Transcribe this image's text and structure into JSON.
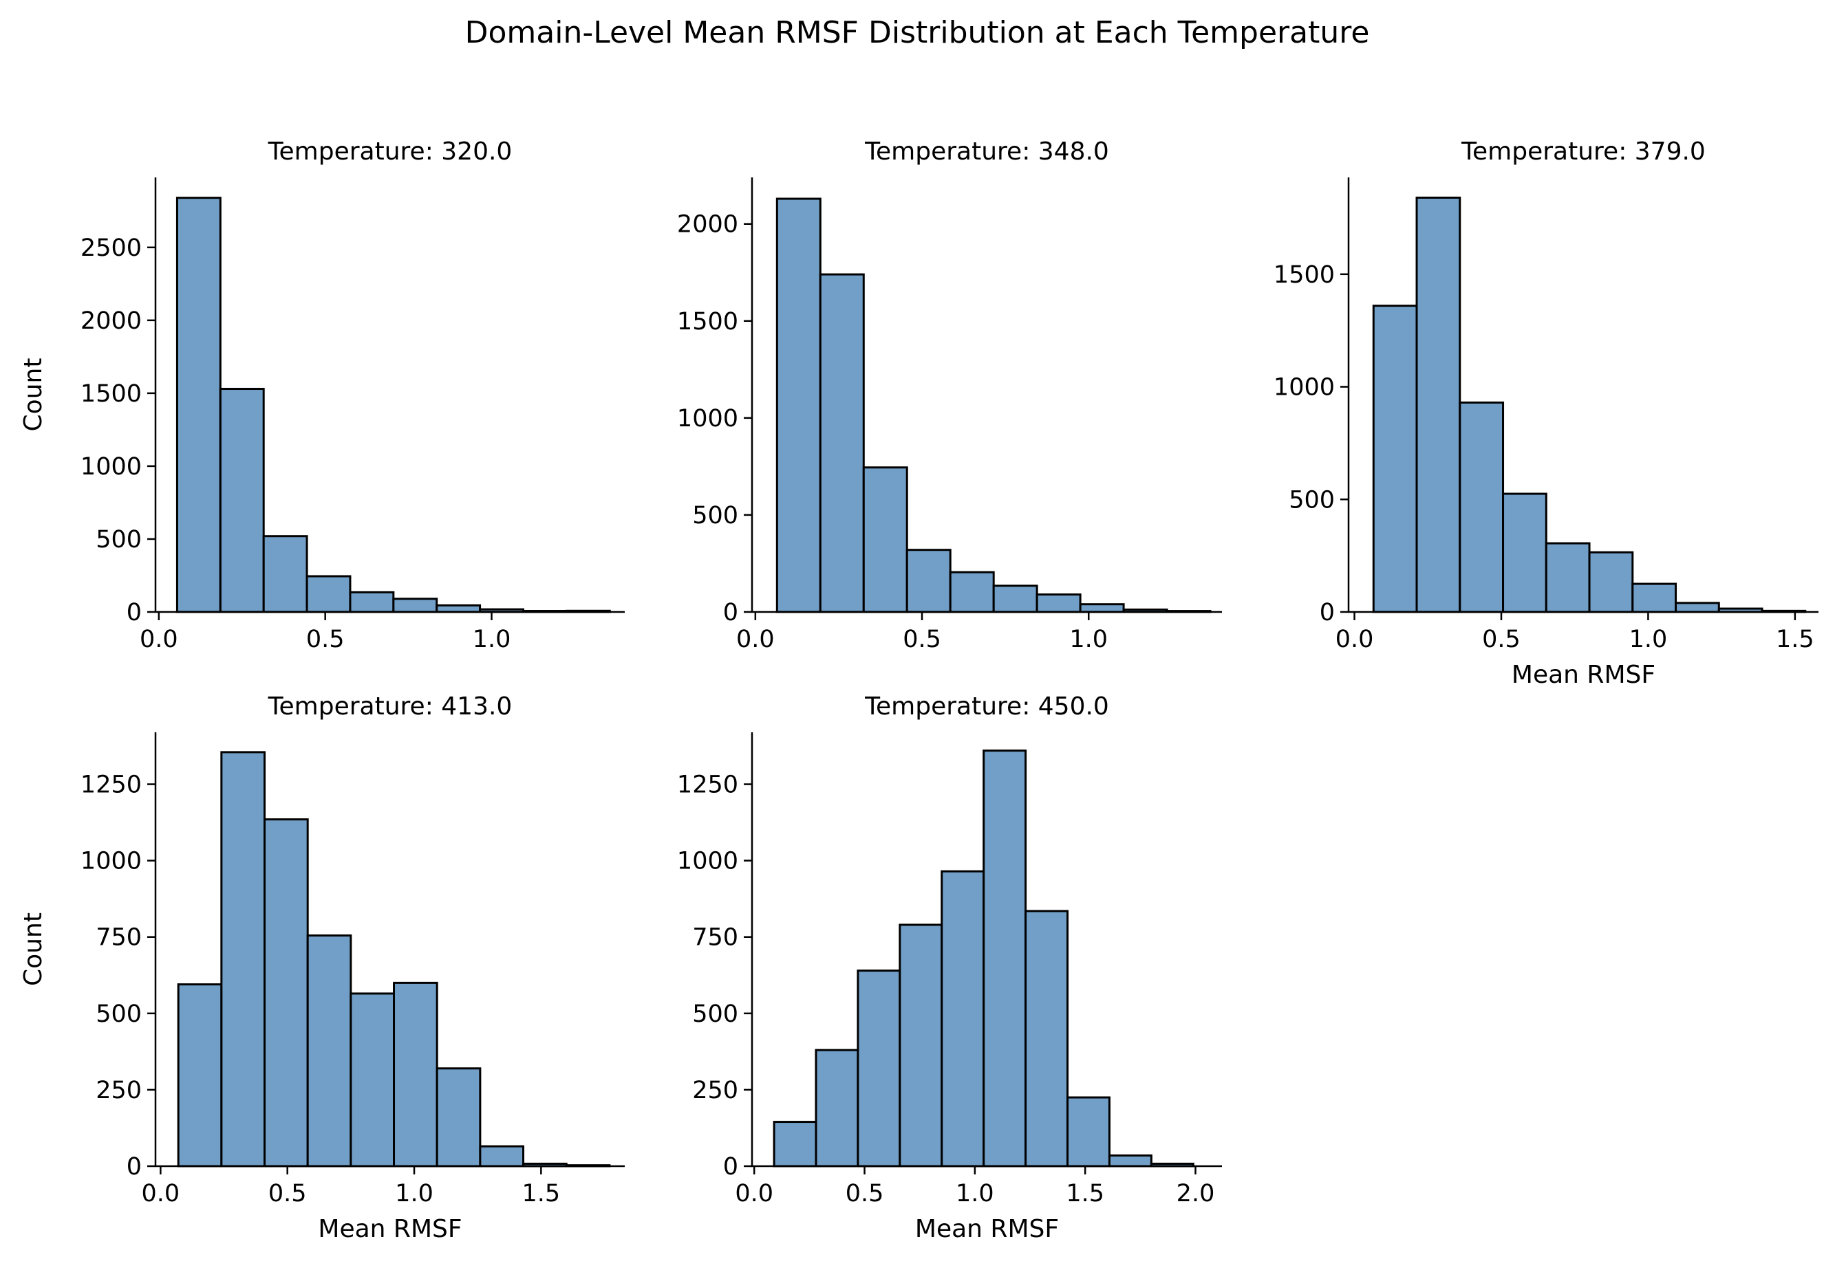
{
  "figure_title": "Domain-Level Mean RMSF Distribution at Each Temperature",
  "style": {
    "bar_fill": "#729fc7",
    "bar_edge": "#000000",
    "axis_color": "#000000"
  },
  "chart_data": [
    {
      "type": "bar",
      "title": "Temperature: 320.0",
      "xlabel": "",
      "ylabel": "Count",
      "xlim": [
        -0.01,
        1.4
      ],
      "ylim": [
        0,
        2980
      ],
      "xticks": [
        0.0,
        0.5,
        1.0
      ],
      "xtick_labels": [
        "0.0",
        "0.5",
        "1.0"
      ],
      "yticks": [
        0,
        500,
        1000,
        1500,
        2000,
        2500
      ],
      "ytick_labels": [
        "0",
        "500",
        "1000",
        "1500",
        "2000",
        "2500"
      ],
      "bin_edges": [
        0.055,
        0.185,
        0.315,
        0.445,
        0.575,
        0.705,
        0.835,
        0.965,
        1.095,
        1.225,
        1.355
      ],
      "values": [
        2840,
        1530,
        520,
        245,
        135,
        90,
        45,
        18,
        7,
        8
      ]
    },
    {
      "type": "bar",
      "title": "Temperature: 348.0",
      "xlabel": "",
      "ylabel": "",
      "xlim": [
        -0.01,
        1.4
      ],
      "ylim": [
        0,
        2240
      ],
      "xticks": [
        0.0,
        0.5,
        1.0
      ],
      "xtick_labels": [
        "0.0",
        "0.5",
        "1.0"
      ],
      "yticks": [
        0,
        500,
        1000,
        1500,
        2000
      ],
      "ytick_labels": [
        "0",
        "500",
        "1000",
        "1500",
        "2000"
      ],
      "bin_edges": [
        0.065,
        0.195,
        0.325,
        0.455,
        0.585,
        0.715,
        0.845,
        0.975,
        1.105,
        1.235,
        1.365
      ],
      "values": [
        2130,
        1740,
        745,
        320,
        205,
        135,
        90,
        40,
        12,
        5
      ]
    },
    {
      "type": "bar",
      "title": "Temperature: 379.0",
      "xlabel": "Mean RMSF",
      "ylabel": "",
      "xlim": [
        -0.02,
        1.58
      ],
      "ylim": [
        0,
        1930
      ],
      "xticks": [
        0.0,
        0.5,
        1.0,
        1.5
      ],
      "xtick_labels": [
        "0.0",
        "0.5",
        "1.0",
        "1.5"
      ],
      "yticks": [
        0,
        500,
        1000,
        1500
      ],
      "ytick_labels": [
        "0",
        "500",
        "1000",
        "1500"
      ],
      "bin_edges": [
        0.065,
        0.212,
        0.359,
        0.506,
        0.653,
        0.8,
        0.947,
        1.094,
        1.241,
        1.388,
        1.535
      ],
      "values": [
        1360,
        1840,
        930,
        525,
        305,
        265,
        125,
        40,
        15,
        5
      ]
    },
    {
      "type": "bar",
      "title": "Temperature: 413.0",
      "xlabel": "Mean RMSF",
      "ylabel": "Count",
      "xlim": [
        -0.02,
        1.83
      ],
      "ylim": [
        0,
        1420
      ],
      "xticks": [
        0.0,
        0.5,
        1.0,
        1.5
      ],
      "xtick_labels": [
        "0.0",
        "0.5",
        "1.0",
        "1.5"
      ],
      "yticks": [
        0,
        250,
        500,
        750,
        1000,
        1250
      ],
      "ytick_labels": [
        "0",
        "250",
        "500",
        "750",
        "1000",
        "1250"
      ],
      "bin_edges": [
        0.07,
        0.24,
        0.41,
        0.58,
        0.75,
        0.92,
        1.09,
        1.26,
        1.43,
        1.6,
        1.77
      ],
      "values": [
        595,
        1355,
        1135,
        755,
        565,
        600,
        320,
        65,
        8,
        3
      ]
    },
    {
      "type": "bar",
      "title": "Temperature: 450.0",
      "xlabel": "Mean RMSF",
      "ylabel": "",
      "xlim": [
        -0.01,
        2.12
      ],
      "ylim": [
        0,
        1420
      ],
      "xticks": [
        0.0,
        0.5,
        1.0,
        1.5,
        2.0
      ],
      "xtick_labels": [
        "0.0",
        "0.5",
        "1.0",
        "1.5",
        "2.0"
      ],
      "yticks": [
        0,
        250,
        500,
        750,
        1000,
        1250
      ],
      "ytick_labels": [
        "0",
        "250",
        "500",
        "750",
        "1000",
        "1250"
      ],
      "bin_edges": [
        0.09,
        0.28,
        0.47,
        0.66,
        0.85,
        1.04,
        1.23,
        1.42,
        1.61,
        1.8,
        1.99
      ],
      "values": [
        145,
        380,
        640,
        790,
        965,
        1360,
        835,
        225,
        35,
        8
      ]
    }
  ]
}
